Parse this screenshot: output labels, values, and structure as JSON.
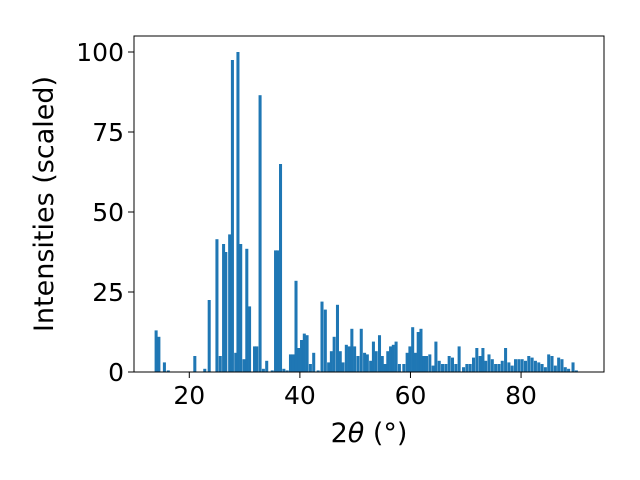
{
  "chart_data": {
    "type": "bar",
    "title": "",
    "xlabel_prefix": "2",
    "xlabel_theta": "θ",
    "xlabel_suffix": " (°)",
    "ylabel": "Intensities (scaled)",
    "xlim": [
      10,
      95
    ],
    "ylim": [
      0,
      105
    ],
    "xticks": [
      20,
      40,
      60,
      80
    ],
    "yticks": [
      0,
      25,
      50,
      75,
      100
    ],
    "bar_width_deg": 0.55,
    "color": "#1f77b4",
    "grid": false,
    "legend": "none",
    "bars": [
      {
        "x": 14.0,
        "y": 13.0
      },
      {
        "x": 14.5,
        "y": 11.0
      },
      {
        "x": 15.5,
        "y": 3.0
      },
      {
        "x": 16.2,
        "y": 0.5
      },
      {
        "x": 21.0,
        "y": 5.0
      },
      {
        "x": 22.8,
        "y": 1.0
      },
      {
        "x": 23.6,
        "y": 22.5
      },
      {
        "x": 25.0,
        "y": 41.5
      },
      {
        "x": 25.6,
        "y": 5.0
      },
      {
        "x": 26.2,
        "y": 40.0
      },
      {
        "x": 26.6,
        "y": 37.5
      },
      {
        "x": 27.3,
        "y": 43.0
      },
      {
        "x": 27.8,
        "y": 97.5
      },
      {
        "x": 28.4,
        "y": 6.0
      },
      {
        "x": 28.8,
        "y": 100.0
      },
      {
        "x": 29.3,
        "y": 40.0
      },
      {
        "x": 29.9,
        "y": 4.0
      },
      {
        "x": 30.4,
        "y": 38.5
      },
      {
        "x": 30.9,
        "y": 20.5
      },
      {
        "x": 31.8,
        "y": 8.0
      },
      {
        "x": 32.2,
        "y": 8.0
      },
      {
        "x": 32.8,
        "y": 86.5
      },
      {
        "x": 33.4,
        "y": 1.0
      },
      {
        "x": 34.0,
        "y": 3.5
      },
      {
        "x": 35.0,
        "y": 0.5
      },
      {
        "x": 35.6,
        "y": 38.0
      },
      {
        "x": 36.0,
        "y": 38.0
      },
      {
        "x": 36.5,
        "y": 65.0
      },
      {
        "x": 37.1,
        "y": 1.0
      },
      {
        "x": 37.7,
        "y": 0.5
      },
      {
        "x": 38.3,
        "y": 5.5
      },
      {
        "x": 38.8,
        "y": 5.5
      },
      {
        "x": 39.3,
        "y": 28.5
      },
      {
        "x": 39.8,
        "y": 7.5
      },
      {
        "x": 40.3,
        "y": 10.0
      },
      {
        "x": 40.8,
        "y": 12.0
      },
      {
        "x": 41.3,
        "y": 11.5
      },
      {
        "x": 41.9,
        "y": 2.5
      },
      {
        "x": 42.5,
        "y": 6.0
      },
      {
        "x": 43.3,
        "y": 0.5
      },
      {
        "x": 44.0,
        "y": 22.0
      },
      {
        "x": 44.6,
        "y": 19.5
      },
      {
        "x": 45.2,
        "y": 3.0
      },
      {
        "x": 45.7,
        "y": 6.5
      },
      {
        "x": 46.2,
        "y": 11.0
      },
      {
        "x": 46.8,
        "y": 21.0
      },
      {
        "x": 47.3,
        "y": 6.5
      },
      {
        "x": 47.8,
        "y": 3.0
      },
      {
        "x": 48.4,
        "y": 8.5
      },
      {
        "x": 48.9,
        "y": 8.0
      },
      {
        "x": 49.4,
        "y": 13.5
      },
      {
        "x": 49.9,
        "y": 8.0
      },
      {
        "x": 50.5,
        "y": 5.0
      },
      {
        "x": 51.1,
        "y": 13.5
      },
      {
        "x": 51.7,
        "y": 6.0
      },
      {
        "x": 52.2,
        "y": 5.5
      },
      {
        "x": 52.8,
        "y": 3.5
      },
      {
        "x": 53.3,
        "y": 9.5
      },
      {
        "x": 53.8,
        "y": 6.5
      },
      {
        "x": 54.4,
        "y": 11.5
      },
      {
        "x": 54.9,
        "y": 5.0
      },
      {
        "x": 55.4,
        "y": 2.5
      },
      {
        "x": 55.9,
        "y": 6.5
      },
      {
        "x": 56.4,
        "y": 8.0
      },
      {
        "x": 56.9,
        "y": 8.5
      },
      {
        "x": 57.4,
        "y": 9.5
      },
      {
        "x": 58.0,
        "y": 2.5
      },
      {
        "x": 58.8,
        "y": 2.5
      },
      {
        "x": 59.4,
        "y": 6.0
      },
      {
        "x": 59.9,
        "y": 8.0
      },
      {
        "x": 60.4,
        "y": 14.0
      },
      {
        "x": 60.9,
        "y": 6.0
      },
      {
        "x": 61.4,
        "y": 12.5
      },
      {
        "x": 61.9,
        "y": 13.5
      },
      {
        "x": 62.4,
        "y": 5.0
      },
      {
        "x": 62.9,
        "y": 5.0
      },
      {
        "x": 63.5,
        "y": 5.5
      },
      {
        "x": 64.1,
        "y": 2.0
      },
      {
        "x": 64.6,
        "y": 9.5
      },
      {
        "x": 65.2,
        "y": 3.5
      },
      {
        "x": 65.8,
        "y": 2.5
      },
      {
        "x": 66.4,
        "y": 2.5
      },
      {
        "x": 67.0,
        "y": 5.0
      },
      {
        "x": 67.6,
        "y": 4.5
      },
      {
        "x": 68.2,
        "y": 2.5
      },
      {
        "x": 68.8,
        "y": 8.0
      },
      {
        "x": 69.6,
        "y": 1.5
      },
      {
        "x": 70.2,
        "y": 2.5
      },
      {
        "x": 70.8,
        "y": 2.5
      },
      {
        "x": 71.4,
        "y": 4.5
      },
      {
        "x": 72.0,
        "y": 7.5
      },
      {
        "x": 72.6,
        "y": 5.0
      },
      {
        "x": 73.1,
        "y": 7.5
      },
      {
        "x": 73.6,
        "y": 3.5
      },
      {
        "x": 74.2,
        "y": 5.5
      },
      {
        "x": 74.8,
        "y": 4.0
      },
      {
        "x": 75.4,
        "y": 2.5
      },
      {
        "x": 76.0,
        "y": 2.5
      },
      {
        "x": 76.6,
        "y": 3.5
      },
      {
        "x": 77.2,
        "y": 7.5
      },
      {
        "x": 77.8,
        "y": 3.0
      },
      {
        "x": 78.4,
        "y": 2.0
      },
      {
        "x": 79.0,
        "y": 4.0
      },
      {
        "x": 79.6,
        "y": 4.0
      },
      {
        "x": 80.2,
        "y": 4.0
      },
      {
        "x": 80.8,
        "y": 3.5
      },
      {
        "x": 81.4,
        "y": 5.0
      },
      {
        "x": 82.0,
        "y": 4.5
      },
      {
        "x": 82.6,
        "y": 3.5
      },
      {
        "x": 83.2,
        "y": 3.0
      },
      {
        "x": 83.8,
        "y": 2.5
      },
      {
        "x": 84.4,
        "y": 1.5
      },
      {
        "x": 85.0,
        "y": 5.5
      },
      {
        "x": 85.6,
        "y": 5.0
      },
      {
        "x": 86.2,
        "y": 2.0
      },
      {
        "x": 86.8,
        "y": 4.5
      },
      {
        "x": 87.4,
        "y": 4.0
      },
      {
        "x": 88.0,
        "y": 1.5
      },
      {
        "x": 88.6,
        "y": 1.0
      },
      {
        "x": 89.4,
        "y": 3.0
      },
      {
        "x": 90.0,
        "y": 0.5
      }
    ]
  }
}
